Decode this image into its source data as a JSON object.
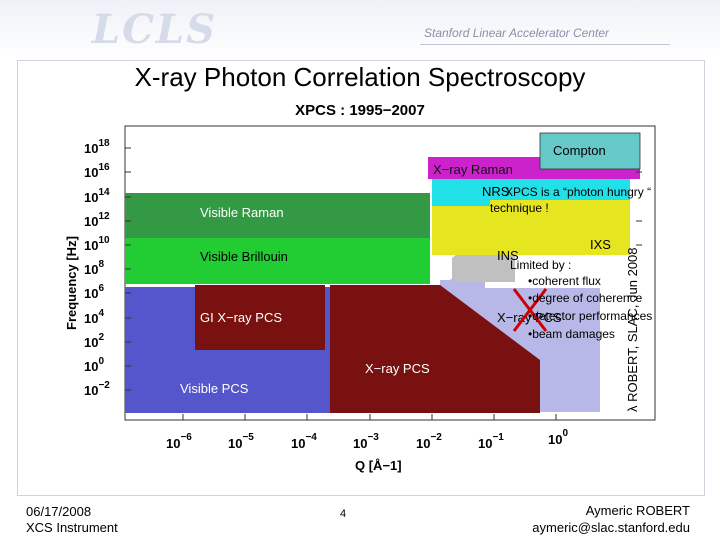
{
  "header": {
    "logo_text": "LCLS",
    "organization": "Stanford Linear Accelerator Center"
  },
  "slide": {
    "title": "X-ray Photon Correlation Spectroscopy",
    "chart_title": "XPCS : 1995−2007",
    "credit": "λ ROBERT, SLAC, Jun 2008"
  },
  "axes": {
    "y_label": "Frequency [Hz]",
    "x_label": "Q [Å−1]",
    "y_ticks": [
      {
        "base": "10",
        "exp": "18"
      },
      {
        "base": "10",
        "exp": "16"
      },
      {
        "base": "10",
        "exp": "14"
      },
      {
        "base": "10",
        "exp": "12"
      },
      {
        "base": "10",
        "exp": "10"
      },
      {
        "base": "10",
        "exp": "8"
      },
      {
        "base": "10",
        "exp": "6"
      },
      {
        "base": "10",
        "exp": "4"
      },
      {
        "base": "10",
        "exp": "2"
      },
      {
        "base": "10",
        "exp": "0"
      },
      {
        "base": "10",
        "exp": "−2"
      }
    ],
    "x_ticks": [
      {
        "base": "10",
        "exp": "−6"
      },
      {
        "base": "10",
        "exp": "−5"
      },
      {
        "base": "10",
        "exp": "−4"
      },
      {
        "base": "10",
        "exp": "−3"
      },
      {
        "base": "10",
        "exp": "−2"
      },
      {
        "base": "10",
        "exp": "−1"
      },
      {
        "base": "10",
        "exp": "0"
      }
    ]
  },
  "regions": {
    "compton": "Compton",
    "xray_raman": "X−ray Raman",
    "nrs": "NRS",
    "visible_raman": "Visible Raman",
    "visible_brillouin": "Visible Brillouin",
    "ins": "INS",
    "ixs": "IXS",
    "gi_xray_pcs": "GI X−ray PCS",
    "xray_pcs_small": "X−ray PCS",
    "xray_pcs": "X−ray PCS",
    "visible_pcs": "Visible PCS"
  },
  "colors": {
    "compton": "#66c9c9",
    "xray_raman": "#cc22cc",
    "nrs": "#22e0e8",
    "ixs": "#e6e620",
    "visible_raman": "#339944",
    "visible_brillouin": "#22cc33",
    "ins": "#c0c0c0",
    "light_region": "#b8b8e8",
    "visible_pcs": "#5555cc",
    "xray_pcs": "#7a1111",
    "cross": "#cc0000"
  },
  "annotation": {
    "line1": "XPCS is a “photon hungry “",
    "line2": "technique !",
    "limited": "Limited by :",
    "bullets": [
      "•coherent flux",
      "•degree of coherence",
      "•detector performances",
      "•beam damages"
    ]
  },
  "footer": {
    "date": "06/17/2008",
    "instrument": "XCS Instrument",
    "page": "4",
    "author": "Aymeric ROBERT",
    "email": "aymeric@slac.stanford.edu"
  }
}
